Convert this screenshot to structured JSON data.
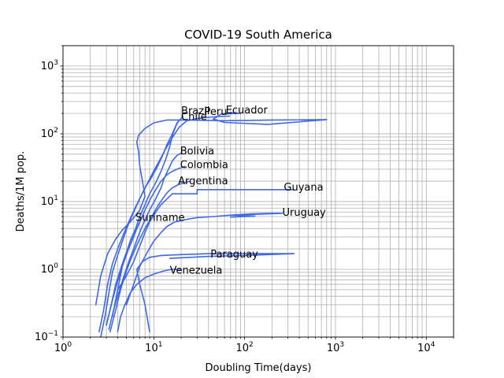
{
  "chart_data": {
    "type": "line",
    "title": "COVID-19  South America",
    "xlabel": "Doubling Time(days)",
    "ylabel": "Deaths/1M pop.",
    "xscale": "log",
    "yscale": "log",
    "xlim": [
      1,
      20000
    ],
    "ylim": [
      0.1,
      2000
    ],
    "x_ticks": [
      {
        "value": 1,
        "base": "10",
        "exp": "0"
      },
      {
        "value": 10,
        "base": "10",
        "exp": "1"
      },
      {
        "value": 100,
        "base": "10",
        "exp": "2"
      },
      {
        "value": 1000,
        "base": "10",
        "exp": "3"
      },
      {
        "value": 10000,
        "base": "10",
        "exp": "4"
      }
    ],
    "y_ticks": [
      {
        "value": 0.1,
        "base": "10",
        "exp": "−1"
      },
      {
        "value": 1,
        "base": "10",
        "exp": "0"
      },
      {
        "value": 10,
        "base": "10",
        "exp": "1"
      },
      {
        "value": 100,
        "base": "10",
        "exp": "2"
      },
      {
        "value": 1000,
        "base": "10",
        "exp": "3"
      }
    ],
    "grid": true,
    "line_color": "#4169e1",
    "series": [
      {
        "name": "Brazil",
        "points": [
          [
            2.6,
            0.1
          ],
          [
            2.9,
            0.2
          ],
          [
            3.2,
            0.45
          ],
          [
            3.5,
            0.9
          ],
          [
            4,
            1.6
          ],
          [
            4.6,
            2.8
          ],
          [
            5.2,
            4.5
          ],
          [
            6,
            7
          ],
          [
            7,
            11
          ],
          [
            8,
            16
          ],
          [
            9.5,
            23
          ],
          [
            11,
            33
          ],
          [
            12.5,
            48
          ],
          [
            14,
            70
          ],
          [
            16,
            100
          ],
          [
            18,
            145
          ],
          [
            21,
            180
          ]
        ]
      },
      {
        "name": "Peru",
        "points": [
          [
            2.5,
            0.12
          ],
          [
            2.8,
            0.25
          ],
          [
            3.1,
            0.6
          ],
          [
            3.5,
            1.2
          ],
          [
            4,
            2
          ],
          [
            4.6,
            3.2
          ],
          [
            5.3,
            5
          ],
          [
            6.2,
            8
          ],
          [
            7.2,
            12
          ],
          [
            8.4,
            18
          ],
          [
            9.8,
            27
          ],
          [
            11.5,
            40
          ],
          [
            13.5,
            60
          ],
          [
            16,
            88
          ],
          [
            19,
            125
          ],
          [
            23,
            155
          ],
          [
            30,
            168
          ],
          [
            40,
            175
          ],
          [
            50,
            180
          ],
          [
            68,
            182
          ]
        ]
      },
      {
        "name": "Ecuador",
        "points": [
          [
            2.3,
            0.3
          ],
          [
            2.6,
            0.8
          ],
          [
            3.1,
            1.7
          ],
          [
            3.8,
            2.8
          ],
          [
            4.5,
            3.8
          ],
          [
            5.5,
            5
          ],
          [
            7,
            7.5
          ],
          [
            8,
            12
          ],
          [
            7.5,
            20
          ],
          [
            7,
            33
          ],
          [
            6.8,
            55
          ],
          [
            6.5,
            75
          ],
          [
            6.8,
            95
          ],
          [
            8,
            120
          ],
          [
            10,
            145
          ],
          [
            14,
            160
          ],
          [
            25,
            160
          ],
          [
            60,
            156
          ],
          [
            200,
            160
          ],
          [
            800,
            162
          ],
          [
            180,
            138
          ],
          [
            60,
            147
          ],
          [
            45,
            165
          ],
          [
            55,
            195
          ],
          [
            70,
            205
          ],
          [
            90,
            200
          ],
          [
            55,
            195
          ]
        ]
      },
      {
        "name": "Chile",
        "points": [
          [
            3,
            0.15
          ],
          [
            3.4,
            0.3
          ],
          [
            3.8,
            0.6
          ],
          [
            4.4,
            1.1
          ],
          [
            5,
            1.8
          ],
          [
            5.6,
            2.8
          ],
          [
            6.3,
            4
          ],
          [
            7,
            6
          ],
          [
            8,
            9
          ],
          [
            9,
            13
          ],
          [
            10.5,
            19
          ],
          [
            12,
            28
          ],
          [
            13.5,
            42
          ],
          [
            15,
            65
          ],
          [
            16,
            95
          ],
          [
            17.5,
            130
          ],
          [
            19,
            160
          ]
        ]
      },
      {
        "name": "Bolivia",
        "points": [
          [
            3.2,
            0.13
          ],
          [
            3.6,
            0.25
          ],
          [
            4.1,
            0.45
          ],
          [
            4.7,
            0.8
          ],
          [
            5.3,
            1.3
          ],
          [
            6,
            2
          ],
          [
            6.8,
            3.2
          ],
          [
            7.8,
            5
          ],
          [
            9,
            7.5
          ],
          [
            10.5,
            11
          ],
          [
            12,
            16
          ],
          [
            13,
            22
          ],
          [
            14.5,
            30
          ],
          [
            16,
            40
          ],
          [
            18,
            48
          ],
          [
            20,
            52
          ]
        ]
      },
      {
        "name": "Colombia",
        "points": [
          [
            3,
            0.15
          ],
          [
            3.4,
            0.3
          ],
          [
            3.9,
            0.6
          ],
          [
            4.5,
            1.1
          ],
          [
            5.2,
            1.9
          ],
          [
            6,
            3.1
          ],
          [
            7,
            5
          ],
          [
            8,
            7.5
          ],
          [
            9.2,
            11
          ],
          [
            10.5,
            15
          ],
          [
            12,
            20
          ],
          [
            14,
            25
          ],
          [
            16,
            28
          ],
          [
            19,
            31
          ],
          [
            22,
            33
          ]
        ]
      },
      {
        "name": "Argentina",
        "points": [
          [
            3.3,
            0.12
          ],
          [
            3.8,
            0.25
          ],
          [
            4.3,
            0.5
          ],
          [
            5,
            0.95
          ],
          [
            5.8,
            1.6
          ],
          [
            6.8,
            2.6
          ],
          [
            8,
            4
          ],
          [
            9.5,
            6
          ],
          [
            11,
            8.5
          ],
          [
            12.5,
            11
          ],
          [
            14,
            13.5
          ],
          [
            16,
            16
          ],
          [
            19,
            18
          ],
          [
            22,
            19
          ],
          [
            25,
            20
          ]
        ]
      },
      {
        "name": "Guyana",
        "points": [
          [
            4,
            0.5
          ],
          [
            5,
            0.8
          ],
          [
            6,
            1.3
          ],
          [
            7,
            2.2
          ],
          [
            8,
            3.5
          ],
          [
            9,
            5
          ],
          [
            10.5,
            7
          ],
          [
            12,
            9
          ],
          [
            14,
            11
          ],
          [
            16,
            13
          ],
          [
            25,
            13
          ],
          [
            30,
            13
          ],
          [
            30,
            15
          ],
          [
            45,
            15
          ],
          [
            100,
            15
          ],
          [
            250,
            15
          ],
          [
            350,
            15
          ]
        ]
      },
      {
        "name": "Uruguay",
        "points": [
          [
            5,
            0.3
          ],
          [
            6,
            0.6
          ],
          [
            7,
            1.1
          ],
          [
            8.5,
            1.8
          ],
          [
            10,
            2.6
          ],
          [
            12,
            3.5
          ],
          [
            14,
            4.3
          ],
          [
            17,
            5
          ],
          [
            22,
            5.4
          ],
          [
            30,
            5.8
          ],
          [
            45,
            6
          ],
          [
            70,
            6.3
          ],
          [
            120,
            6.6
          ],
          [
            190,
            6.7
          ],
          [
            260,
            6.7
          ],
          [
            70,
            6.3
          ],
          [
            130,
            6.1
          ],
          [
            70,
            5.9
          ]
        ]
      },
      {
        "name": "Suriname",
        "points": [
          [
            3.5,
            0.2
          ],
          [
            4,
            0.5
          ],
          [
            4.5,
            1.1
          ],
          [
            5,
            1.7
          ],
          [
            5.5,
            2.3
          ],
          [
            6,
            3
          ],
          [
            6.5,
            4
          ],
          [
            7,
            5
          ]
        ]
      },
      {
        "name": "Paraguay",
        "points": [
          [
            9,
            0.12
          ],
          [
            8,
            0.3
          ],
          [
            7,
            0.6
          ],
          [
            6.5,
            1
          ],
          [
            7.5,
            1.3
          ],
          [
            9,
            1.5
          ],
          [
            12,
            1.6
          ],
          [
            20,
            1.65
          ],
          [
            40,
            1.7
          ],
          [
            100,
            1.7
          ],
          [
            200,
            1.7
          ],
          [
            350,
            1.7
          ],
          [
            100,
            1.6
          ],
          [
            40,
            1.55
          ],
          [
            25,
            1.5
          ],
          [
            15,
            1.45
          ]
        ]
      },
      {
        "name": "Venezuela",
        "points": [
          [
            4,
            0.12
          ],
          [
            4.3,
            0.2
          ],
          [
            4.8,
            0.3
          ],
          [
            5.5,
            0.45
          ],
          [
            6.5,
            0.6
          ],
          [
            8,
            0.75
          ],
          [
            10,
            0.85
          ],
          [
            13,
            0.95
          ],
          [
            16,
            1
          ],
          [
            20,
            1
          ]
        ]
      }
    ],
    "labels": [
      {
        "text": "Brazil",
        "x": 20,
        "y": 195
      },
      {
        "text": "Peru",
        "x": 36,
        "y": 190
      },
      {
        "text": "Ecuador",
        "x": 62,
        "y": 200
      },
      {
        "text": "Chile",
        "x": 20,
        "y": 160
      },
      {
        "text": "Bolivia",
        "x": 19.5,
        "y": 50
      },
      {
        "text": "Colombia",
        "x": 19.5,
        "y": 31
      },
      {
        "text": "Argentina",
        "x": 18.5,
        "y": 18
      },
      {
        "text": "Guyana",
        "x": 270,
        "y": 14.5
      },
      {
        "text": "Uruguay",
        "x": 260,
        "y": 6.2
      },
      {
        "text": "Suriname",
        "x": 6.3,
        "y": 5.2
      },
      {
        "text": "Paraguay",
        "x": 42,
        "y": 1.5
      },
      {
        "text": "Venezuela",
        "x": 15,
        "y": 0.86
      }
    ]
  }
}
